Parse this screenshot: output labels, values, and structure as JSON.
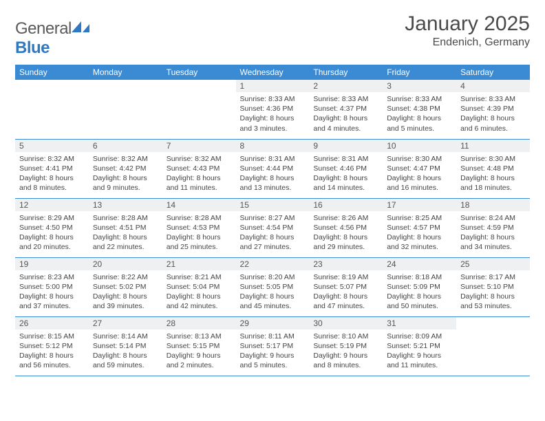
{
  "brand": {
    "name_part1": "General",
    "name_part2": "Blue",
    "logo_fill": "#2f78c2",
    "text_color_gray": "#5a5a5a"
  },
  "header": {
    "month_title": "January 2025",
    "location": "Endenich, Germany",
    "title_color": "#4a4a4a",
    "title_fontsize": 30,
    "location_fontsize": 16
  },
  "calendar": {
    "day_header_bg": "#3b8bd4",
    "day_header_fg": "#ffffff",
    "daynum_bg": "#eef0f2",
    "border_color": "#3b8bd4",
    "body_text_color": "#444444",
    "columns": [
      "Sunday",
      "Monday",
      "Tuesday",
      "Wednesday",
      "Thursday",
      "Friday",
      "Saturday"
    ],
    "weeks": [
      [
        null,
        null,
        null,
        {
          "n": "1",
          "sunrise": "Sunrise: 8:33 AM",
          "sunset": "Sunset: 4:36 PM",
          "daylight": "Daylight: 8 hours and 3 minutes."
        },
        {
          "n": "2",
          "sunrise": "Sunrise: 8:33 AM",
          "sunset": "Sunset: 4:37 PM",
          "daylight": "Daylight: 8 hours and 4 minutes."
        },
        {
          "n": "3",
          "sunrise": "Sunrise: 8:33 AM",
          "sunset": "Sunset: 4:38 PM",
          "daylight": "Daylight: 8 hours and 5 minutes."
        },
        {
          "n": "4",
          "sunrise": "Sunrise: 8:33 AM",
          "sunset": "Sunset: 4:39 PM",
          "daylight": "Daylight: 8 hours and 6 minutes."
        }
      ],
      [
        {
          "n": "5",
          "sunrise": "Sunrise: 8:32 AM",
          "sunset": "Sunset: 4:41 PM",
          "daylight": "Daylight: 8 hours and 8 minutes."
        },
        {
          "n": "6",
          "sunrise": "Sunrise: 8:32 AM",
          "sunset": "Sunset: 4:42 PM",
          "daylight": "Daylight: 8 hours and 9 minutes."
        },
        {
          "n": "7",
          "sunrise": "Sunrise: 8:32 AM",
          "sunset": "Sunset: 4:43 PM",
          "daylight": "Daylight: 8 hours and 11 minutes."
        },
        {
          "n": "8",
          "sunrise": "Sunrise: 8:31 AM",
          "sunset": "Sunset: 4:44 PM",
          "daylight": "Daylight: 8 hours and 13 minutes."
        },
        {
          "n": "9",
          "sunrise": "Sunrise: 8:31 AM",
          "sunset": "Sunset: 4:46 PM",
          "daylight": "Daylight: 8 hours and 14 minutes."
        },
        {
          "n": "10",
          "sunrise": "Sunrise: 8:30 AM",
          "sunset": "Sunset: 4:47 PM",
          "daylight": "Daylight: 8 hours and 16 minutes."
        },
        {
          "n": "11",
          "sunrise": "Sunrise: 8:30 AM",
          "sunset": "Sunset: 4:48 PM",
          "daylight": "Daylight: 8 hours and 18 minutes."
        }
      ],
      [
        {
          "n": "12",
          "sunrise": "Sunrise: 8:29 AM",
          "sunset": "Sunset: 4:50 PM",
          "daylight": "Daylight: 8 hours and 20 minutes."
        },
        {
          "n": "13",
          "sunrise": "Sunrise: 8:28 AM",
          "sunset": "Sunset: 4:51 PM",
          "daylight": "Daylight: 8 hours and 22 minutes."
        },
        {
          "n": "14",
          "sunrise": "Sunrise: 8:28 AM",
          "sunset": "Sunset: 4:53 PM",
          "daylight": "Daylight: 8 hours and 25 minutes."
        },
        {
          "n": "15",
          "sunrise": "Sunrise: 8:27 AM",
          "sunset": "Sunset: 4:54 PM",
          "daylight": "Daylight: 8 hours and 27 minutes."
        },
        {
          "n": "16",
          "sunrise": "Sunrise: 8:26 AM",
          "sunset": "Sunset: 4:56 PM",
          "daylight": "Daylight: 8 hours and 29 minutes."
        },
        {
          "n": "17",
          "sunrise": "Sunrise: 8:25 AM",
          "sunset": "Sunset: 4:57 PM",
          "daylight": "Daylight: 8 hours and 32 minutes."
        },
        {
          "n": "18",
          "sunrise": "Sunrise: 8:24 AM",
          "sunset": "Sunset: 4:59 PM",
          "daylight": "Daylight: 8 hours and 34 minutes."
        }
      ],
      [
        {
          "n": "19",
          "sunrise": "Sunrise: 8:23 AM",
          "sunset": "Sunset: 5:00 PM",
          "daylight": "Daylight: 8 hours and 37 minutes."
        },
        {
          "n": "20",
          "sunrise": "Sunrise: 8:22 AM",
          "sunset": "Sunset: 5:02 PM",
          "daylight": "Daylight: 8 hours and 39 minutes."
        },
        {
          "n": "21",
          "sunrise": "Sunrise: 8:21 AM",
          "sunset": "Sunset: 5:04 PM",
          "daylight": "Daylight: 8 hours and 42 minutes."
        },
        {
          "n": "22",
          "sunrise": "Sunrise: 8:20 AM",
          "sunset": "Sunset: 5:05 PM",
          "daylight": "Daylight: 8 hours and 45 minutes."
        },
        {
          "n": "23",
          "sunrise": "Sunrise: 8:19 AM",
          "sunset": "Sunset: 5:07 PM",
          "daylight": "Daylight: 8 hours and 47 minutes."
        },
        {
          "n": "24",
          "sunrise": "Sunrise: 8:18 AM",
          "sunset": "Sunset: 5:09 PM",
          "daylight": "Daylight: 8 hours and 50 minutes."
        },
        {
          "n": "25",
          "sunrise": "Sunrise: 8:17 AM",
          "sunset": "Sunset: 5:10 PM",
          "daylight": "Daylight: 8 hours and 53 minutes."
        }
      ],
      [
        {
          "n": "26",
          "sunrise": "Sunrise: 8:15 AM",
          "sunset": "Sunset: 5:12 PM",
          "daylight": "Daylight: 8 hours and 56 minutes."
        },
        {
          "n": "27",
          "sunrise": "Sunrise: 8:14 AM",
          "sunset": "Sunset: 5:14 PM",
          "daylight": "Daylight: 8 hours and 59 minutes."
        },
        {
          "n": "28",
          "sunrise": "Sunrise: 8:13 AM",
          "sunset": "Sunset: 5:15 PM",
          "daylight": "Daylight: 9 hours and 2 minutes."
        },
        {
          "n": "29",
          "sunrise": "Sunrise: 8:11 AM",
          "sunset": "Sunset: 5:17 PM",
          "daylight": "Daylight: 9 hours and 5 minutes."
        },
        {
          "n": "30",
          "sunrise": "Sunrise: 8:10 AM",
          "sunset": "Sunset: 5:19 PM",
          "daylight": "Daylight: 9 hours and 8 minutes."
        },
        {
          "n": "31",
          "sunrise": "Sunrise: 8:09 AM",
          "sunset": "Sunset: 5:21 PM",
          "daylight": "Daylight: 9 hours and 11 minutes."
        },
        null
      ]
    ]
  }
}
